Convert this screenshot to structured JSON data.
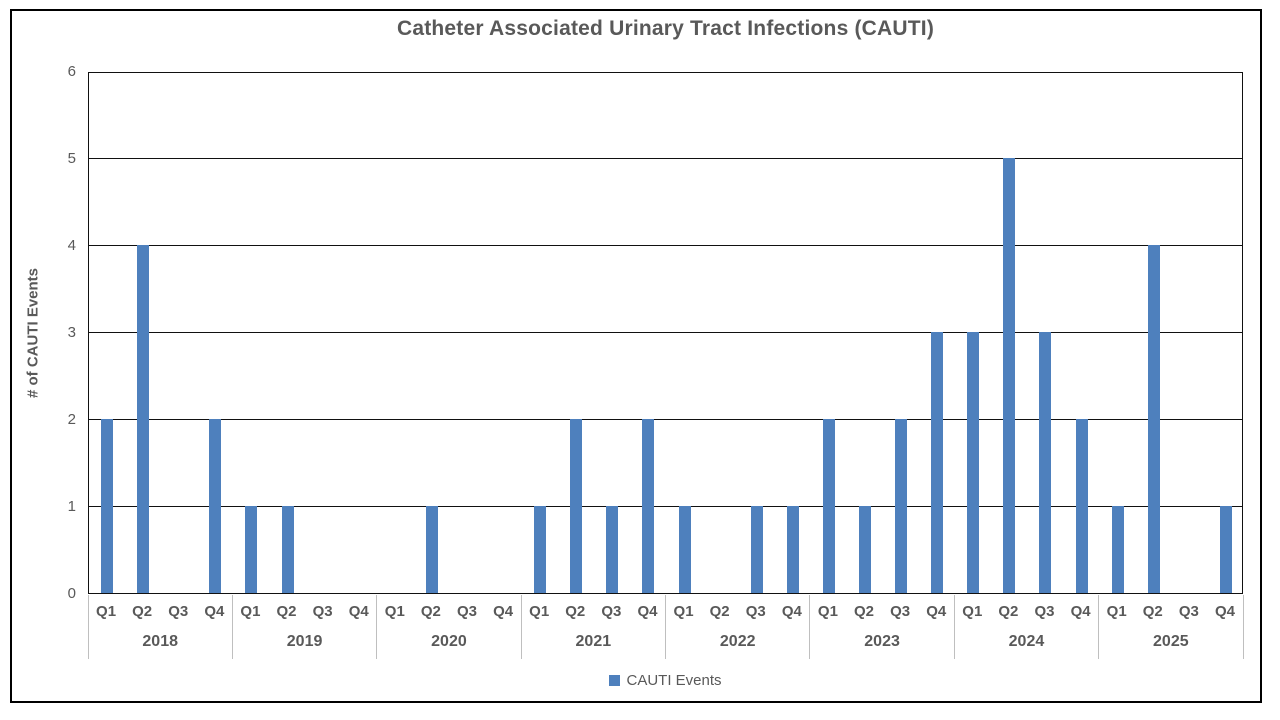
{
  "chart_data": {
    "type": "bar",
    "title": "Catheter Associated Urinary Tract Infections (CAUTI)",
    "ylabel": "# of CAUTI Events",
    "ylim": [
      0,
      6
    ],
    "yticks": [
      0,
      1,
      2,
      3,
      4,
      5,
      6
    ],
    "grid": true,
    "legend_position": "bottom",
    "series_name": "CAUTI Events",
    "bar_color": "#4E80BD",
    "quarter_labels": [
      "Q1",
      "Q2",
      "Q3",
      "Q4"
    ],
    "groups": [
      {
        "year": "2018",
        "values": [
          2,
          4,
          0,
          2
        ]
      },
      {
        "year": "2019",
        "values": [
          1,
          1,
          0,
          0
        ]
      },
      {
        "year": "2020",
        "values": [
          0,
          1,
          0,
          0
        ]
      },
      {
        "year": "2021",
        "values": [
          1,
          2,
          1,
          2
        ]
      },
      {
        "year": "2022",
        "values": [
          1,
          0,
          1,
          1
        ]
      },
      {
        "year": "2023",
        "values": [
          2,
          1,
          2,
          3
        ]
      },
      {
        "year": "2024",
        "values": [
          3,
          5,
          3,
          2
        ]
      },
      {
        "year": "2025",
        "values": [
          1,
          4,
          0,
          1
        ]
      }
    ]
  },
  "legend": {
    "label": "CAUTI Events"
  },
  "colors": {
    "bar": "#4E80BD",
    "text": "#595959",
    "gridline": "#111111",
    "year_separator": "#BFBFBF",
    "frame_border": "#000000",
    "background": "#FFFFFF"
  }
}
